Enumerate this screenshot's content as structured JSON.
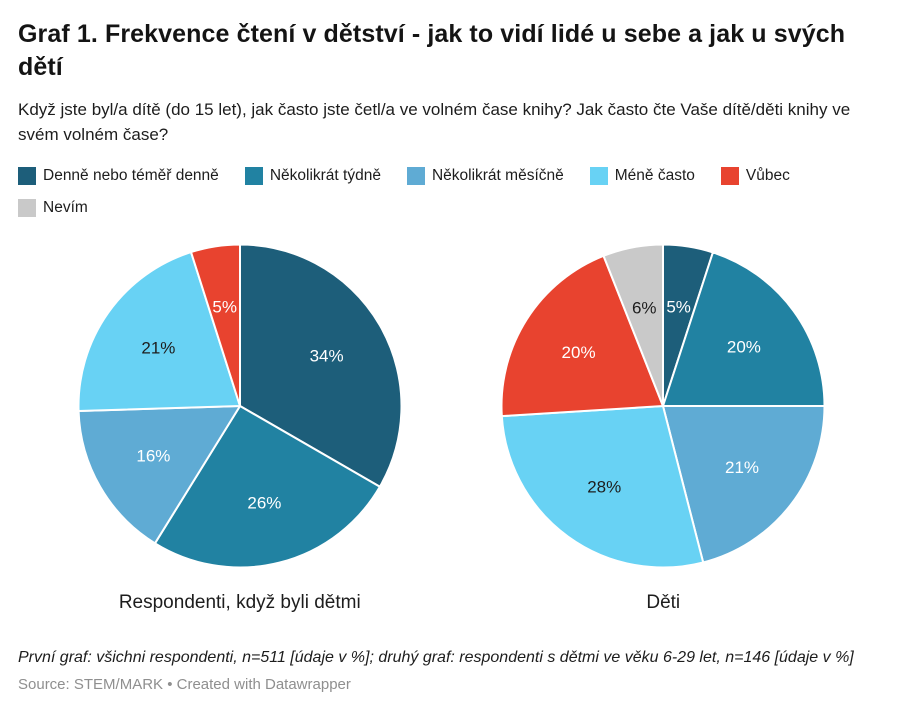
{
  "header": {
    "title": "Graf 1. Frekvence čtení v dětství - jak to vidí lidé u sebe a jak u svých dětí",
    "subtitle": "Když jste byl/a dítě (do 15 let), jak často jste četl/a ve volném čase knihy? Jak často čte Vaše dítě/děti knihy ve svém volném čase?"
  },
  "legend": {
    "rows": [
      [
        0,
        1,
        2,
        3,
        4
      ],
      [
        5
      ]
    ]
  },
  "chart_data": {
    "type": "pie",
    "unit": "%",
    "categories": [
      "Denně nebo téměř denně",
      "Několikrát týdně",
      "Několikrát měsíčně",
      "Méně často",
      "Vůbec",
      "Nevím"
    ],
    "colors": [
      "#1d5e7a",
      "#2182a2",
      "#5fabd4",
      "#68d2f4",
      "#e8432f",
      "#c9c9c9"
    ],
    "value_label_colors": [
      "#ffffff",
      "#ffffff",
      "#ffffff",
      "#1d1d1d",
      "#ffffff",
      "#1d1d1d"
    ],
    "start_angle_deg": 0,
    "direction": "clockwise",
    "legend_position": "top",
    "series": [
      {
        "name": "Respondenti, když byli dětmi",
        "values": [
          34,
          26,
          16,
          21,
          5,
          0
        ]
      },
      {
        "name": "Děti",
        "values": [
          5,
          20,
          21,
          28,
          20,
          6
        ]
      }
    ]
  },
  "footer": {
    "note": "První graf: všichni respondenti, n=511 [údaje v %]; druhý graf: respondenti s dětmi ve věku 6-29 let, n=146 [údaje v %]",
    "source": "Source: STEM/MARK • Created with Datawrapper"
  }
}
